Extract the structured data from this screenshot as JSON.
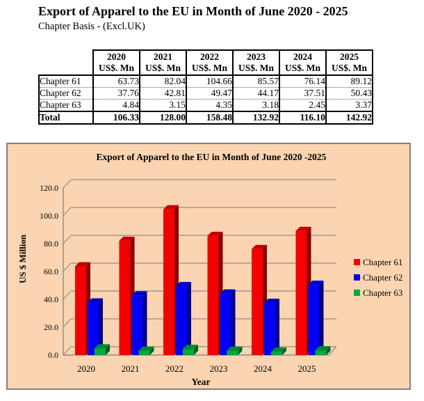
{
  "page": {
    "title": "Export of Apparel to the EU in Month of June 2020 - 2025",
    "subtitle": "Chapter Basis - (Excl.UK)"
  },
  "table": {
    "corner_label": "",
    "unit_label": "US$. Mn",
    "years": [
      "2020",
      "2021",
      "2022",
      "2023",
      "2024",
      "2025"
    ],
    "rows": [
      {
        "label": "Chapter 61",
        "values": [
          "63.73",
          "82.04",
          "104.66",
          "85.57",
          "76.14",
          "89.12"
        ]
      },
      {
        "label": "Chapter 62",
        "values": [
          "37.76",
          "42.81",
          "49.47",
          "44.17",
          "37.51",
          "50.43"
        ]
      },
      {
        "label": "Chapter 63",
        "values": [
          "4.84",
          "3.15",
          "4.35",
          "3.18",
          "2.45",
          "3.37"
        ]
      }
    ],
    "total_row": {
      "label": "Total",
      "values": [
        "106.33",
        "128.00",
        "158.48",
        "132.92",
        "116.10",
        "142.92"
      ]
    }
  },
  "chart_data": {
    "type": "bar",
    "style": "3d-clustered-column",
    "title": "Export of Apparel to the EU in Month of June 2020 -2025",
    "categories": [
      "2020",
      "2021",
      "2022",
      "2023",
      "2024",
      "2025"
    ],
    "series": [
      {
        "name": "Chapter 61",
        "color": "#f40000",
        "values": [
          63.73,
          82.04,
          104.66,
          85.57,
          76.14,
          89.12
        ]
      },
      {
        "name": "Chapter 62",
        "color": "#0000f4",
        "values": [
          37.76,
          42.81,
          49.47,
          44.17,
          37.51,
          50.43
        ]
      },
      {
        "name": "Chapter 63",
        "color": "#00a93c",
        "values": [
          4.84,
          3.15,
          4.35,
          3.18,
          2.45,
          3.37
        ]
      }
    ],
    "xlabel": "Year",
    "ylabel": "US $ Million",
    "ylim": [
      0,
      120
    ],
    "ytick_step": 20,
    "ytick_decimals": 1,
    "grid": true,
    "legend_position": "right",
    "plot_background": "#fbd5b1",
    "gridline_color": "#8c8c8c",
    "border_color": "#7f7f7f"
  }
}
